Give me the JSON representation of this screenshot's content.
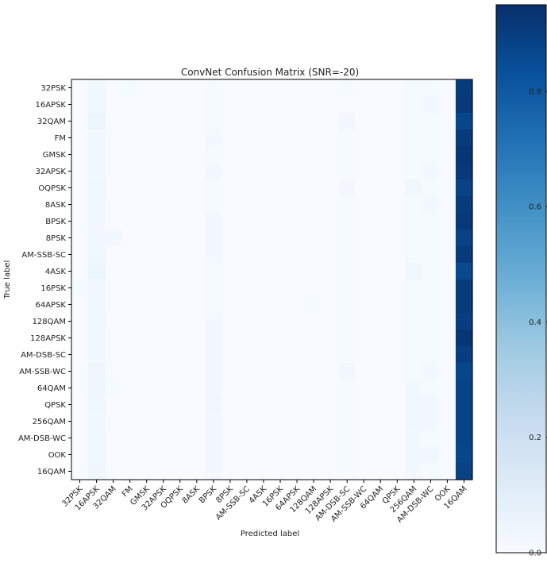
{
  "chart_data": {
    "type": "heatmap",
    "title": "ConvNet Confusion Matrix (SNR=-20)",
    "xlabel": "Predicted label",
    "ylabel": "True label",
    "labels": [
      "32PSK",
      "16APSK",
      "32QAM",
      "FM",
      "GMSK",
      "32APSK",
      "OQPSK",
      "8ASK",
      "BPSK",
      "8PSK",
      "AM-SSB-SC",
      "4ASK",
      "16PSK",
      "64APSK",
      "128QAM",
      "128APSK",
      "AM-DSB-SC",
      "AM-SSB-WC",
      "64QAM",
      "QPSK",
      "256QAM",
      "AM-DSB-WC",
      "OOK",
      "16QAM"
    ],
    "values": [
      [
        0,
        0.03,
        0,
        0.01,
        0,
        0,
        0,
        0,
        0.01,
        0,
        0,
        0,
        0,
        0,
        0,
        0,
        0.01,
        0,
        0,
        0,
        0.01,
        0.01,
        0,
        0.91
      ],
      [
        0,
        0.03,
        0,
        0,
        0,
        0,
        0,
        0,
        0.01,
        0,
        0,
        0,
        0,
        0,
        0,
        0,
        0,
        0,
        0,
        0,
        0.01,
        0.02,
        0,
        0.92
      ],
      [
        0,
        0.05,
        0,
        0,
        0,
        0,
        0,
        0,
        0.01,
        0,
        0,
        0,
        0,
        0,
        0,
        0,
        0.03,
        0,
        0,
        0,
        0.01,
        0.01,
        0,
        0.87
      ],
      [
        0,
        0.02,
        0,
        0,
        0,
        0,
        0,
        0,
        0.02,
        0,
        0,
        0,
        0,
        0,
        0,
        0,
        0.01,
        0,
        0,
        0,
        0.01,
        0.01,
        0,
        0.91
      ],
      [
        0,
        0.02,
        0,
        0,
        0,
        0,
        0,
        0,
        0.01,
        0,
        0,
        0,
        0,
        0,
        0,
        0,
        0.01,
        0,
        0,
        0,
        0.01,
        0.01,
        0,
        0.93
      ],
      [
        0,
        0.02,
        0,
        0,
        0,
        0,
        0,
        0,
        0.02,
        0,
        0,
        0,
        0,
        0,
        0,
        0,
        0.01,
        0,
        0,
        0,
        0.01,
        0.02,
        0,
        0.92
      ],
      [
        0,
        0.03,
        0,
        0,
        0,
        0,
        0,
        0,
        0.01,
        0,
        0,
        0,
        0,
        0,
        0,
        0,
        0.02,
        0,
        0,
        0,
        0.03,
        0.01,
        0,
        0.89
      ],
      [
        0,
        0.02,
        0,
        0,
        0,
        0,
        0,
        0,
        0.01,
        0,
        0,
        0,
        0,
        0,
        0,
        0,
        0.01,
        0,
        0,
        0,
        0.01,
        0.02,
        0,
        0.91
      ],
      [
        0,
        0.02,
        0,
        0,
        0,
        0,
        0,
        0,
        0.02,
        0,
        0,
        0,
        0,
        0,
        0,
        0,
        0.01,
        0,
        0,
        0,
        0.01,
        0.01,
        0,
        0.92
      ],
      [
        0,
        0.03,
        0.02,
        0,
        0,
        0,
        0,
        0,
        0.02,
        0,
        0,
        0,
        0,
        0,
        0,
        0,
        0.01,
        0,
        0,
        0,
        0.01,
        0.01,
        0,
        0.89
      ],
      [
        0,
        0.03,
        0,
        0,
        0,
        0,
        0,
        0,
        0.02,
        0,
        0,
        0,
        0,
        0,
        0,
        0,
        0.01,
        0,
        0,
        0,
        0.01,
        0.01,
        0,
        0.91
      ],
      [
        0,
        0.05,
        0,
        0,
        0,
        0,
        0,
        0,
        0.01,
        0,
        0,
        0,
        0,
        0,
        0,
        0,
        0.01,
        0,
        0,
        0,
        0.03,
        0.01,
        0,
        0.86
      ],
      [
        0.01,
        0.02,
        0,
        0,
        0,
        0,
        0,
        0,
        0.01,
        0,
        0,
        0,
        0,
        0,
        0,
        0,
        0.01,
        0,
        0,
        0,
        0.01,
        0.01,
        0,
        0.91
      ],
      [
        0,
        0.02,
        0,
        0,
        0,
        0,
        0,
        0,
        0.01,
        0,
        0,
        0,
        0,
        0,
        0.01,
        0,
        0.01,
        0,
        0,
        0,
        0.01,
        0.01,
        0,
        0.91
      ],
      [
        0,
        0.03,
        0,
        0,
        0,
        0,
        0,
        0,
        0.02,
        0,
        0,
        0,
        0,
        0,
        0,
        0,
        0.01,
        0,
        0,
        0,
        0.01,
        0.01,
        0,
        0.9
      ],
      [
        0,
        0.02,
        0,
        0,
        0,
        0,
        0,
        0,
        0.02,
        0,
        0,
        0,
        0,
        0,
        0,
        0,
        0.01,
        0,
        0,
        0,
        0.01,
        0.01,
        0,
        0.93
      ],
      [
        0,
        0.02,
        0,
        0,
        0,
        0,
        0,
        0,
        0.02,
        0,
        0,
        0,
        0,
        0,
        0,
        0,
        0.01,
        0,
        0,
        0,
        0.01,
        0.01,
        0,
        0.9
      ],
      [
        0,
        0.04,
        0,
        0,
        0,
        0,
        0,
        0,
        0.02,
        0,
        0,
        0,
        0,
        0,
        0,
        0,
        0.03,
        0,
        0,
        0,
        0.01,
        0.02,
        0,
        0.87
      ],
      [
        0,
        0.04,
        0.01,
        0,
        0,
        0,
        0,
        0,
        0.02,
        0,
        0,
        0,
        0,
        0,
        0,
        0,
        0.01,
        0,
        0,
        0,
        0.02,
        0.01,
        0,
        0.88
      ],
      [
        0,
        0.03,
        0,
        0,
        0,
        0,
        0,
        0,
        0.03,
        0,
        0,
        0,
        0,
        0,
        0,
        0,
        0.01,
        0,
        0,
        0,
        0.03,
        0.02,
        0,
        0.88
      ],
      [
        0,
        0.02,
        0,
        0,
        0,
        0,
        0,
        0,
        0.02,
        0,
        0,
        0,
        0,
        0,
        0,
        0,
        0.01,
        0,
        0,
        0,
        0.03,
        0.02,
        0,
        0.88
      ],
      [
        0,
        0.03,
        0,
        0,
        0,
        0,
        0,
        0,
        0.02,
        0,
        0,
        0,
        0,
        0,
        0,
        0,
        0.01,
        0,
        0,
        0,
        0.02,
        0.01,
        0,
        0.88
      ],
      [
        0,
        0.03,
        0,
        0,
        0,
        0,
        0,
        0,
        0.02,
        0,
        0,
        0,
        0,
        0,
        0,
        0,
        0.01,
        0,
        0,
        0,
        0.02,
        0.03,
        0,
        0.87
      ],
      [
        0,
        0.04,
        0,
        0,
        0,
        0,
        0,
        0,
        0.02,
        0,
        0,
        0,
        0,
        0,
        0,
        0,
        0.01,
        0,
        0,
        0,
        0.02,
        0.01,
        0,
        0.89
      ]
    ],
    "colorbar": {
      "min": 0,
      "max": 0.95,
      "ticks": [
        0.0,
        0.2,
        0.4,
        0.6,
        0.8
      ],
      "tick_labels": [
        "0.0",
        "0.2",
        "0.4",
        "0.6",
        "0.8"
      ]
    },
    "grid": false,
    "colormap": "Blues"
  },
  "colors": {
    "cmap_low": "#f7fbff",
    "cmap_high": "#08306b"
  }
}
